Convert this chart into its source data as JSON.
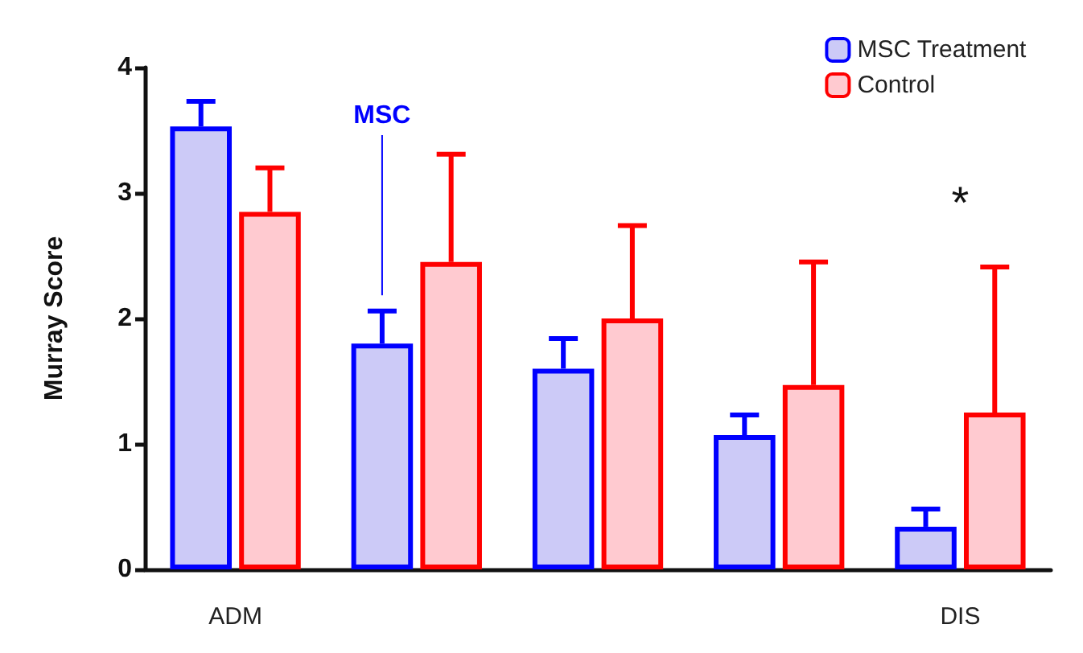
{
  "chart_data": {
    "type": "bar",
    "ylabel": "Murray Score",
    "categories": [
      "ADM",
      null,
      null,
      null,
      "DIS"
    ],
    "series": [
      {
        "name": "MSC Treatment",
        "color": "#0000ff",
        "values": [
          3.53,
          1.8,
          1.6,
          1.07,
          0.34
        ],
        "errors": [
          [
            3.53,
            3.73
          ],
          [
            1.8,
            2.06
          ],
          [
            1.6,
            1.84
          ],
          [
            1.07,
            1.23
          ],
          [
            0.34,
            0.48
          ]
        ]
      },
      {
        "name": "Control",
        "color": "#ff0000",
        "values": [
          2.85,
          2.45,
          2.0,
          1.47,
          1.25
        ],
        "errors": [
          [
            2.85,
            3.2
          ],
          [
            2.45,
            3.31
          ],
          [
            2.0,
            2.74
          ],
          [
            1.47,
            2.45
          ],
          [
            1.25,
            2.41
          ]
        ]
      }
    ],
    "ylim": [
      0,
      4
    ],
    "yticks": [
      0,
      1,
      2,
      3,
      4
    ],
    "grid": false,
    "legend": "top right",
    "annotations": [
      "MSC",
      "*"
    ]
  }
}
